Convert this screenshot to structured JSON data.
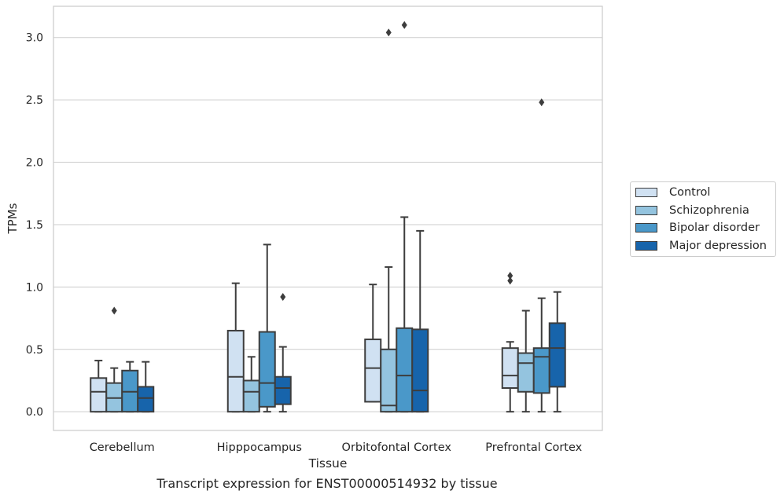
{
  "caption": "Transcript expression for ENST00000514932 by tissue",
  "chart_data": {
    "type": "box",
    "xlabel": "Tissue",
    "ylabel": "TPMs",
    "ylim": [
      -0.15,
      3.25
    ],
    "yticks": [
      0.0,
      0.5,
      1.0,
      1.5,
      2.0,
      2.5,
      3.0
    ],
    "ytick_labels": [
      "0.0",
      "0.5",
      "1.0",
      "1.5",
      "2.0",
      "2.5",
      "3.0"
    ],
    "grid": true,
    "legend_position": "right",
    "categories": [
      "Cerebellum",
      "Hipppocampus",
      "Orbitofontal Cortex",
      "Prefrontal Cortex"
    ],
    "series": [
      {
        "name": "Control",
        "color": "#d0e1f2",
        "boxes": [
          {
            "min": 0.0,
            "q1": 0.0,
            "median": 0.16,
            "q3": 0.27,
            "max": 0.41,
            "outliers": []
          },
          {
            "min": 0.0,
            "q1": 0.0,
            "median": 0.28,
            "q3": 0.65,
            "max": 1.03,
            "outliers": []
          },
          {
            "min": 0.08,
            "q1": 0.08,
            "median": 0.35,
            "q3": 0.58,
            "max": 1.02,
            "outliers": []
          },
          {
            "min": 0.0,
            "q1": 0.19,
            "median": 0.29,
            "q3": 0.51,
            "max": 0.56,
            "outliers": [
              1.05,
              1.09
            ]
          }
        ]
      },
      {
        "name": "Schizophrenia",
        "color": "#94c4df",
        "boxes": [
          {
            "min": 0.0,
            "q1": 0.0,
            "median": 0.11,
            "q3": 0.23,
            "max": 0.35,
            "outliers": [
              0.81
            ]
          },
          {
            "min": 0.0,
            "q1": 0.0,
            "median": 0.16,
            "q3": 0.25,
            "max": 0.44,
            "outliers": []
          },
          {
            "min": 0.0,
            "q1": 0.0,
            "median": 0.05,
            "q3": 0.5,
            "max": 1.16,
            "outliers": [
              3.04
            ]
          },
          {
            "min": 0.0,
            "q1": 0.16,
            "median": 0.39,
            "q3": 0.47,
            "max": 0.81,
            "outliers": []
          }
        ]
      },
      {
        "name": "Bipolar disorder",
        "color": "#4a98c9",
        "boxes": [
          {
            "min": 0.0,
            "q1": 0.0,
            "median": 0.16,
            "q3": 0.33,
            "max": 0.4,
            "outliers": []
          },
          {
            "min": 0.0,
            "q1": 0.04,
            "median": 0.23,
            "q3": 0.64,
            "max": 1.34,
            "outliers": []
          },
          {
            "min": 0.0,
            "q1": 0.0,
            "median": 0.29,
            "q3": 0.67,
            "max": 1.56,
            "outliers": [
              3.1
            ]
          },
          {
            "min": 0.0,
            "q1": 0.15,
            "median": 0.44,
            "q3": 0.51,
            "max": 0.91,
            "outliers": [
              2.48
            ]
          }
        ]
      },
      {
        "name": "Major depression",
        "color": "#1764ab",
        "boxes": [
          {
            "min": 0.0,
            "q1": 0.0,
            "median": 0.11,
            "q3": 0.2,
            "max": 0.4,
            "outliers": []
          },
          {
            "min": 0.0,
            "q1": 0.06,
            "median": 0.19,
            "q3": 0.28,
            "max": 0.52,
            "outliers": [
              0.92
            ]
          },
          {
            "min": 0.0,
            "q1": 0.0,
            "median": 0.17,
            "q3": 0.66,
            "max": 1.45,
            "outliers": []
          },
          {
            "min": 0.0,
            "q1": 0.2,
            "median": 0.51,
            "q3": 0.71,
            "max": 0.96,
            "outliers": []
          }
        ]
      }
    ]
  }
}
